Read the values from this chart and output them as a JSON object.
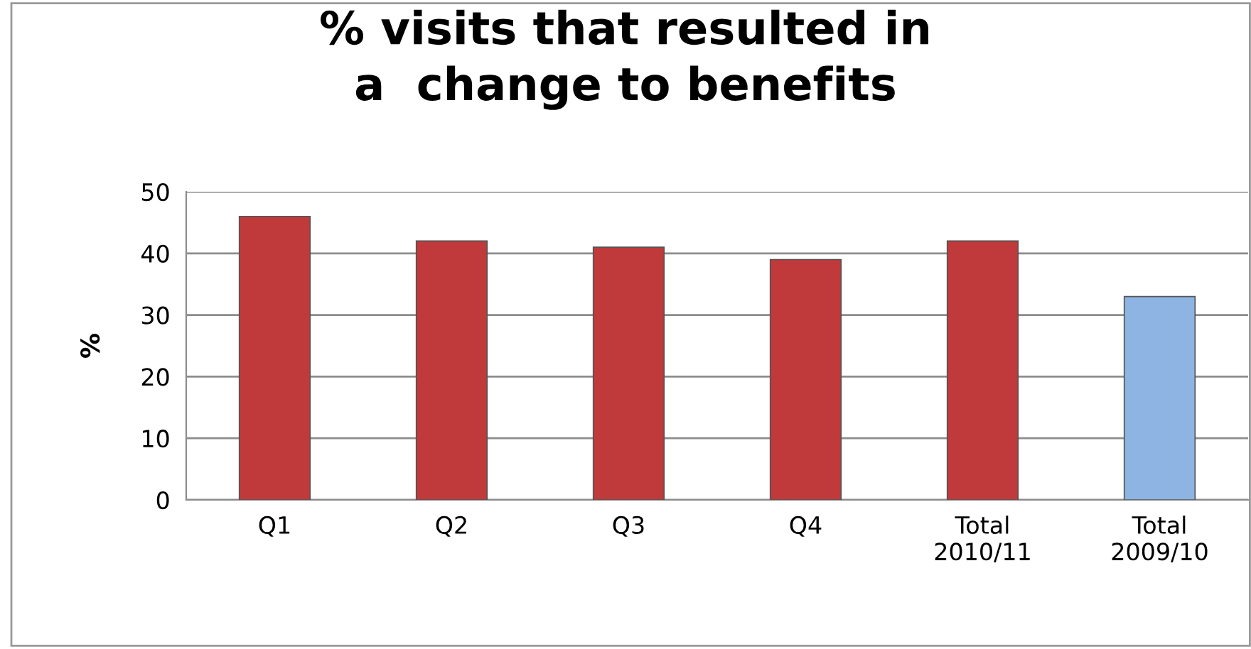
{
  "chart_data": {
    "type": "bar",
    "title": "% visits that resulted in\na  change to benefits",
    "ylabel": "%",
    "categories": [
      "Q1",
      "Q2",
      "Q3",
      "Q4",
      "Total\n2010/11",
      "Total\n2009/10"
    ],
    "values": [
      46,
      42,
      41,
      39,
      42,
      33
    ],
    "colors": [
      "#c0393b",
      "#c0393b",
      "#c0393b",
      "#c0393b",
      "#c0393b",
      "#8db4e2"
    ],
    "ylim": [
      0,
      50
    ],
    "yticks": [
      0,
      10,
      20,
      30,
      40,
      50
    ],
    "grid": "y",
    "legend": false
  }
}
